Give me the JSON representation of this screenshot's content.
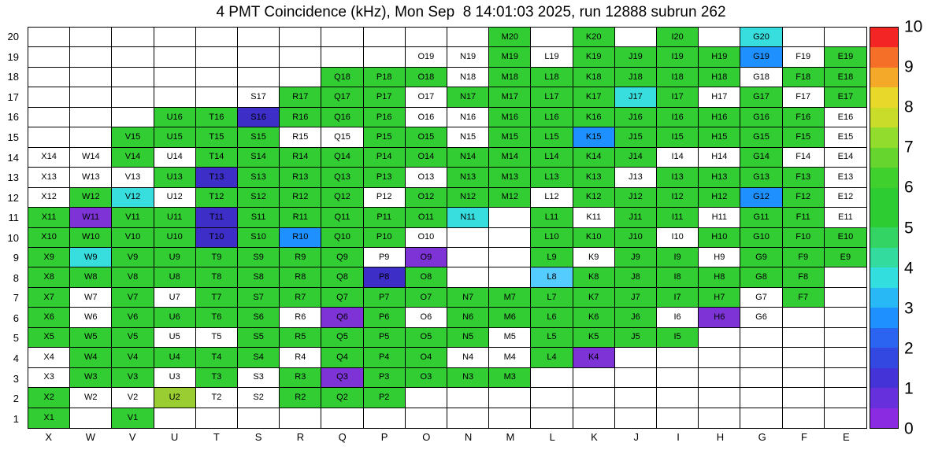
{
  "title": "4 PMT Coincidence (kHz), Mon Sep  8 14:01:03 2025, run 12888 subrun 262",
  "chart_data": {
    "type": "heatmap",
    "title": "4 PMT Coincidence (kHz), Mon Sep  8 14:01:03 2025, run 12888 subrun 262",
    "run": "12888",
    "subrun": "262",
    "timestamp": "Mon Sep  8 14:01:03 2025",
    "unit": "kHz",
    "zlim": [
      0,
      10
    ],
    "colorbar_ticks": [
      0,
      1,
      2,
      3,
      4,
      5,
      6,
      7,
      8,
      9,
      10
    ],
    "columns": [
      "X",
      "W",
      "V",
      "U",
      "T",
      "S",
      "R",
      "Q",
      "P",
      "O",
      "N",
      "M",
      "L",
      "K",
      "J",
      "I",
      "H",
      "G",
      "F",
      "E"
    ],
    "rows": [
      20,
      19,
      18,
      17,
      16,
      15,
      14,
      13,
      12,
      11,
      10,
      9,
      8,
      7,
      6,
      5,
      4,
      3,
      2,
      1
    ],
    "legend": {
      "g": {
        "color": "#32cd32",
        "value": 5
      },
      "y": {
        "color": "#9acd32",
        "value": 7
      },
      "c": {
        "color": "#38dede",
        "value": 3.5
      },
      "lb": {
        "color": "#55ccff",
        "value": 3
      },
      "b": {
        "color": "#1e90ff",
        "value": 2.5
      },
      "d": {
        "color": "#3c2ec6",
        "value": 1
      },
      "p": {
        "color": "#7d33d6",
        "value": 0.5
      },
      "w": {
        "color": "#ffffff",
        "value": 0
      }
    },
    "cells": [
      [
        "",
        "",
        "",
        "",
        "",
        "",
        "",
        "",
        "",
        "",
        "",
        "M20:g",
        "",
        "K20:g",
        "",
        "I20:g",
        "",
        "G20:c",
        "",
        ""
      ],
      [
        "",
        "",
        "",
        "",
        "",
        "",
        "",
        "",
        "",
        "O19:w",
        "N19:w",
        "M19:g",
        "L19:w",
        "K19:g",
        "J19:g",
        "I19:g",
        "H19:g",
        "G19:b",
        "F19:w",
        "E19:g"
      ],
      [
        "",
        "",
        "",
        "",
        "",
        "",
        "",
        "Q18:g",
        "P18:g",
        "O18:g",
        "N18:w",
        "M18:g",
        "L18:g",
        "K18:g",
        "J18:g",
        "I18:g",
        "H18:g",
        "G18:w",
        "F18:g",
        "E18:g"
      ],
      [
        "",
        "",
        "",
        "",
        "",
        "S17:w",
        "R17:g",
        "Q17:g",
        "P17:g",
        "O17:w",
        "N17:g",
        "M17:g",
        "L17:g",
        "K17:g",
        "J17:c",
        "I17:g",
        "H17:w",
        "G17:g",
        "F17:w",
        "E17:g"
      ],
      [
        "",
        "",
        "",
        "U16:g",
        "T16:g",
        "S16:d",
        "R16:g",
        "Q16:g",
        "P16:g",
        "O16:w",
        "N16:w",
        "M16:g",
        "L16:g",
        "K16:g",
        "J16:g",
        "I16:g",
        "H16:g",
        "G16:g",
        "F16:g",
        "E16:w"
      ],
      [
        "",
        "",
        "V15:g",
        "U15:g",
        "T15:g",
        "S15:g",
        "R15:w",
        "Q15:w",
        "P15:g",
        "O15:g",
        "N15:w",
        "M15:g",
        "L15:g",
        "K15:b",
        "J15:g",
        "I15:g",
        "H15:g",
        "G15:g",
        "F15:g",
        "E15:w"
      ],
      [
        "X14:w",
        "W14:w",
        "V14:g",
        "U14:w",
        "T14:g",
        "S14:g",
        "R14:g",
        "Q14:g",
        "P14:g",
        "O14:g",
        "N14:g",
        "M14:g",
        "L14:g",
        "K14:g",
        "J14:g",
        "I14:w",
        "H14:w",
        "G14:g",
        "F14:w",
        "E14:w"
      ],
      [
        "X13:w",
        "W13:w",
        "V13:w",
        "U13:g",
        "T13:d",
        "S13:g",
        "R13:g",
        "Q13:g",
        "P13:g",
        "O13:w",
        "N13:g",
        "M13:g",
        "L13:g",
        "K13:g",
        "J13:w",
        "I13:g",
        "H13:g",
        "G13:g",
        "F13:g",
        "E13:w"
      ],
      [
        "X12:w",
        "W12:g",
        "V12:c",
        "U12:w",
        "T12:g",
        "S12:g",
        "R12:g",
        "Q12:g",
        "P12:w",
        "O12:g",
        "N12:g",
        "M12:g",
        "L12:w",
        "K12:g",
        "J12:g",
        "I12:g",
        "H12:g",
        "G12:b",
        "F12:g",
        "E12:w"
      ],
      [
        "X11:g",
        "W11:p",
        "V11:g",
        "U11:g",
        "T11:d",
        "S11:g",
        "R11:g",
        "Q11:g",
        "P11:g",
        "O11:g",
        "N11:c",
        "",
        "L11:g",
        "K11:w",
        "J11:g",
        "I11:g",
        "H11:w",
        "G11:g",
        "F11:g",
        "E11:w"
      ],
      [
        "X10:g",
        "W10:g",
        "V10:g",
        "U10:g",
        "T10:d",
        "S10:g",
        "R10:b",
        "Q10:g",
        "P10:g",
        "O10:w",
        "",
        "",
        "L10:g",
        "K10:g",
        "J10:g",
        "I10:w",
        "H10:g",
        "G10:g",
        "F10:g",
        "E10:g"
      ],
      [
        "X9:g",
        "W9:c",
        "V9:g",
        "U9:g",
        "T9:g",
        "S9:g",
        "R9:g",
        "Q9:g",
        "P9:w",
        "O9:p",
        "",
        "",
        "L9:g",
        "K9:w",
        "J9:g",
        "I9:g",
        "H9:w",
        "G9:g",
        "F9:g",
        "E9:g"
      ],
      [
        "X8:g",
        "W8:g",
        "V8:g",
        "U8:g",
        "T8:g",
        "S8:g",
        "R8:g",
        "Q8:g",
        "P8:d",
        "O8:g",
        "",
        "",
        "L8:lb",
        "K8:g",
        "J8:g",
        "I8:g",
        "H8:g",
        "G8:g",
        "F8:g",
        ""
      ],
      [
        "X7:g",
        "W7:w",
        "V7:g",
        "U7:w",
        "T7:g",
        "S7:g",
        "R7:g",
        "Q7:g",
        "P7:g",
        "O7:g",
        "N7:g",
        "M7:g",
        "L7:g",
        "K7:g",
        "J7:g",
        "I7:g",
        "H7:g",
        "G7:w",
        "F7:g",
        ""
      ],
      [
        "X6:g",
        "W6:w",
        "V6:g",
        "U6:g",
        "T6:g",
        "S6:g",
        "R6:w",
        "Q6:p",
        "P6:g",
        "O6:w",
        "N6:g",
        "M6:g",
        "L6:g",
        "K6:g",
        "J6:g",
        "I6:w",
        "H6:p",
        "G6:w",
        "",
        ""
      ],
      [
        "X5:g",
        "W5:g",
        "V5:g",
        "U5:w",
        "T5:w",
        "S5:g",
        "R5:g",
        "Q5:g",
        "P5:g",
        "O5:g",
        "N5:g",
        "M5:w",
        "L5:g",
        "K5:g",
        "J5:g",
        "I5:g",
        "",
        "",
        "",
        ""
      ],
      [
        "X4:w",
        "W4:g",
        "V4:g",
        "U4:g",
        "T4:g",
        "S4:g",
        "R4:w",
        "Q4:g",
        "P4:g",
        "O4:g",
        "N4:w",
        "M4:w",
        "L4:g",
        "K4:p",
        "",
        "",
        "",
        "",
        "",
        ""
      ],
      [
        "X3:w",
        "W3:g",
        "V3:g",
        "U3:w",
        "T3:g",
        "S3:w",
        "R3:g",
        "Q3:p",
        "P3:g",
        "O3:g",
        "N3:g",
        "M3:g",
        "",
        "",
        "",
        "",
        "",
        "",
        "",
        ""
      ],
      [
        "X2:g",
        "W2:w",
        "V2:w",
        "U2:y",
        "T2:w",
        "S2:w",
        "R2:g",
        "Q2:g",
        "P2:g",
        "",
        "",
        "",
        "",
        "",
        "",
        "",
        "",
        "",
        "",
        ""
      ],
      [
        "X1:g",
        "",
        "V1:g",
        "",
        "",
        "",
        "",
        "",
        "",
        "",
        "",
        "",
        "",
        "",
        "",
        "",
        "",
        "",
        "",
        ""
      ]
    ]
  },
  "colorbar_stops": [
    "#8a2be2",
    "#6630dc",
    "#4433d6",
    "#3348e0",
    "#2a64f0",
    "#1e90ff",
    "#28b8f5",
    "#33dede",
    "#33dc9e",
    "#33d364",
    "#2ecc33",
    "#2ecc33",
    "#40d02e",
    "#66d62e",
    "#92dc2e",
    "#c8dc29",
    "#e8d829",
    "#f5a929",
    "#f56f29",
    "#f42525"
  ]
}
